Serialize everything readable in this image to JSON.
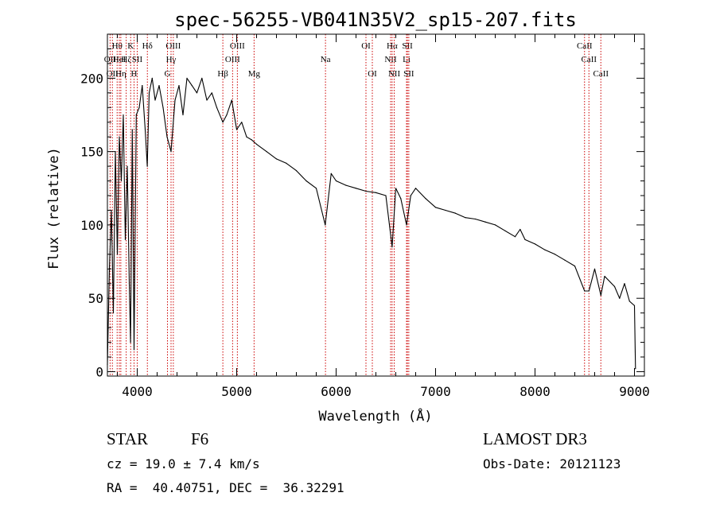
{
  "chart_data": {
    "type": "line",
    "title": "spec-56255-VB041N35V2_sp15-207.fits",
    "xlabel": "Wavelength (Å)",
    "ylabel": "Flux (relative)",
    "xlim": [
      3700,
      9100
    ],
    "ylim": [
      -3,
      230
    ],
    "x_ticks": [
      4000,
      5000,
      6000,
      7000,
      8000,
      9000
    ],
    "y_ticks": [
      0,
      50,
      100,
      150,
      200
    ],
    "series": [
      {
        "name": "flux",
        "x": [
          3700,
          3720,
          3740,
          3760,
          3780,
          3800,
          3820,
          3840,
          3860,
          3880,
          3900,
          3920,
          3933,
          3950,
          3968,
          3990,
          4020,
          4050,
          4080,
          4101,
          4120,
          4150,
          4180,
          4220,
          4260,
          4300,
          4340,
          4380,
          4420,
          4460,
          4500,
          4550,
          4600,
          4650,
          4700,
          4750,
          4800,
          4861,
          4900,
          4950,
          5000,
          5050,
          5100,
          5150,
          5200,
          5300,
          5400,
          5500,
          5600,
          5700,
          5800,
          5890,
          5950,
          6000,
          6100,
          6200,
          6300,
          6400,
          6500,
          6563,
          6600,
          6650,
          6708,
          6750,
          6800,
          6900,
          7000,
          7100,
          7200,
          7300,
          7400,
          7500,
          7600,
          7700,
          7800,
          7850,
          7900,
          8000,
          8100,
          8200,
          8300,
          8400,
          8498,
          8542,
          8600,
          8662,
          8700,
          8800,
          8850,
          8900,
          8950,
          9000,
          9010
        ],
        "y": [
          5,
          70,
          110,
          40,
          150,
          80,
          160,
          130,
          175,
          90,
          140,
          60,
          20,
          165,
          15,
          175,
          180,
          195,
          165,
          140,
          190,
          200,
          185,
          195,
          180,
          160,
          150,
          185,
          195,
          175,
          200,
          195,
          190,
          200,
          185,
          190,
          180,
          170,
          175,
          185,
          165,
          170,
          160,
          158,
          155,
          150,
          145,
          142,
          137,
          130,
          125,
          100,
          135,
          130,
          127,
          125,
          123,
          122,
          120,
          85,
          125,
          118,
          100,
          120,
          125,
          118,
          112,
          110,
          108,
          105,
          104,
          102,
          100,
          96,
          92,
          97,
          90,
          87,
          83,
          80,
          76,
          72,
          55,
          55,
          70,
          52,
          65,
          58,
          50,
          60,
          48,
          45,
          2
        ]
      }
    ],
    "line_markers": [
      {
        "wavelength": 3727,
        "label": "OII",
        "row": 2
      },
      {
        "wavelength": 3750,
        "label": "OII",
        "row": 3
      },
      {
        "wavelength": 3798,
        "label": "Hθ",
        "row": 1
      },
      {
        "wavelength": 3820,
        "label": "HeI",
        "row": 2
      },
      {
        "wavelength": 3835,
        "label": "Hη",
        "row": 3
      },
      {
        "wavelength": 3889,
        "label": "Hζ",
        "row": 2
      },
      {
        "wavelength": 3934,
        "label": "K",
        "row": 1
      },
      {
        "wavelength": 3968,
        "label": "H",
        "row": 3
      },
      {
        "wavelength": 4000,
        "label": "SII",
        "row": 2
      },
      {
        "wavelength": 4102,
        "label": "Hδ",
        "row": 1
      },
      {
        "wavelength": 4304,
        "label": "G",
        "row": 3
      },
      {
        "wavelength": 4340,
        "label": "Hγ",
        "row": 2
      },
      {
        "wavelength": 4363,
        "label": "OIII",
        "row": 1
      },
      {
        "wavelength": 4861,
        "label": "Hβ",
        "row": 3
      },
      {
        "wavelength": 4959,
        "label": "OIII",
        "row": 2
      },
      {
        "wavelength": 5007,
        "label": "OIII",
        "row": 1
      },
      {
        "wavelength": 5175,
        "label": "Mg",
        "row": 3
      },
      {
        "wavelength": 5893,
        "label": "Na",
        "row": 2
      },
      {
        "wavelength": 6300,
        "label": "OI",
        "row": 1
      },
      {
        "wavelength": 6364,
        "label": "OI",
        "row": 3
      },
      {
        "wavelength": 6548,
        "label": "NII",
        "row": 2
      },
      {
        "wavelength": 6563,
        "label": "Hα",
        "row": 1
      },
      {
        "wavelength": 6584,
        "label": "NII",
        "row": 3
      },
      {
        "wavelength": 6708,
        "label": "Li",
        "row": 2
      },
      {
        "wavelength": 6717,
        "label": "SII",
        "row": 1
      },
      {
        "wavelength": 6731,
        "label": "SII",
        "row": 3
      },
      {
        "wavelength": 8498,
        "label": "CaII",
        "row": 1
      },
      {
        "wavelength": 8542,
        "label": "CaII",
        "row": 2
      },
      {
        "wavelength": 8662,
        "label": "CaII",
        "row": 3
      }
    ],
    "line_color": "#000000",
    "marker_color": "#cc0000",
    "grid": false
  },
  "info": {
    "class_label": "STAR",
    "subclass": "F6",
    "survey": "LAMOST DR3",
    "redshift": "cz = 19.0 ± 7.4 km/s",
    "obs_date": "Obs-Date: 20121123",
    "coords": "RA =  40.40751, DEC =  36.32291"
  }
}
